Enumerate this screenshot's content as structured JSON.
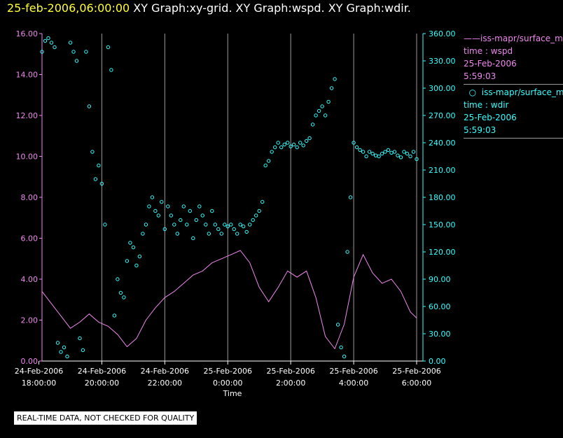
{
  "header": {
    "timestamp": "25-feb-2006,06:00:00",
    "title": "XY Graph:xy-grid.  XY Graph:wspd.  XY Graph:wdir."
  },
  "legend": {
    "wspd": {
      "series": "iss-mapr/surface_m",
      "field": "time : wspd",
      "date": "25-Feb-2006",
      "time": "5:59:03"
    },
    "wdir": {
      "series": "iss-mapr/surface_m",
      "field": "time : wdir",
      "date": "25-Feb-2006",
      "time": "5:59:03"
    }
  },
  "disclaimer": "REAL-TIME DATA, NOT CHECKED FOR QUALITY",
  "colors": {
    "wspd": "#ee88ee",
    "wdir": "#33ffff",
    "grid": "#9a9a9a",
    "header_date": "#ffff33",
    "background": "#000000"
  },
  "chart_data": {
    "type": "line",
    "xlabel": "Time",
    "xlim_hours": [
      -5.9,
      6.2
    ],
    "x_ticks": [
      {
        "hour": -6,
        "date": "24-Feb-2006",
        "time": "18:00:00"
      },
      {
        "hour": -4,
        "date": "24-Feb-2006",
        "time": "20:00:00"
      },
      {
        "hour": -2,
        "date": "24-Feb-2006",
        "time": "22:00:00"
      },
      {
        "hour": 0,
        "date": "25-Feb-2006",
        "time": "0:00:00"
      },
      {
        "hour": 2,
        "date": "25-Feb-2006",
        "time": "2:00:00"
      },
      {
        "hour": 4,
        "date": "25-Feb-2006",
        "time": "4:00:00"
      },
      {
        "hour": 6,
        "date": "25-Feb-2006",
        "time": "6:00:00"
      }
    ],
    "left_axis": {
      "ylim": [
        0,
        16
      ],
      "ticks": [
        "0.00",
        "2.00",
        "4.00",
        "6.00",
        "8.00",
        "10.00",
        "12.00",
        "14.00",
        "16.00"
      ]
    },
    "right_axis": {
      "ylim": [
        0,
        360
      ],
      "ticks": [
        "0.00",
        "30.00",
        "60.00",
        "90.00",
        "120.00",
        "150.00",
        "180.00",
        "210.00",
        "240.00",
        "270.00",
        "300.00",
        "330.00",
        "360.00"
      ]
    },
    "grid": "vertical",
    "series": [
      {
        "key": "wspd",
        "style": "line",
        "axis": "left",
        "x": [
          -5.9,
          -5.6,
          -5.3,
          -5.0,
          -4.7,
          -4.4,
          -4.1,
          -3.8,
          -3.5,
          -3.2,
          -2.9,
          -2.6,
          -2.3,
          -2.0,
          -1.7,
          -1.4,
          -1.1,
          -0.8,
          -0.5,
          -0.2,
          0.1,
          0.4,
          0.7,
          1.0,
          1.3,
          1.6,
          1.9,
          2.2,
          2.5,
          2.8,
          3.1,
          3.4,
          3.7,
          4.0,
          4.3,
          4.6,
          4.9,
          5.2,
          5.5,
          5.8,
          6.0
        ],
        "y": [
          3.4,
          2.8,
          2.2,
          1.6,
          1.9,
          2.3,
          1.9,
          1.7,
          1.3,
          0.7,
          1.1,
          2.0,
          2.6,
          3.1,
          3.4,
          3.8,
          4.2,
          4.4,
          4.8,
          5.0,
          5.2,
          5.4,
          4.8,
          3.6,
          2.9,
          3.6,
          4.4,
          4.1,
          4.4,
          3.1,
          1.2,
          0.6,
          1.8,
          4.1,
          5.2,
          4.3,
          3.8,
          4.0,
          3.4,
          2.4,
          2.1
        ]
      },
      {
        "key": "wdir",
        "style": "scatter",
        "axis": "right",
        "x": [
          -5.9,
          -5.8,
          -5.7,
          -5.6,
          -5.5,
          -5.4,
          -5.3,
          -5.2,
          -5.1,
          -5.0,
          -4.9,
          -4.8,
          -4.7,
          -4.6,
          -4.5,
          -4.4,
          -4.3,
          -4.2,
          -4.1,
          -4.0,
          -3.9,
          -3.8,
          -3.7,
          -3.6,
          -3.5,
          -3.4,
          -3.3,
          -3.2,
          -3.1,
          -3.0,
          -2.9,
          -2.8,
          -2.7,
          -2.6,
          -2.5,
          -2.4,
          -2.3,
          -2.2,
          -2.1,
          -2.0,
          -1.9,
          -1.8,
          -1.7,
          -1.6,
          -1.5,
          -1.4,
          -1.3,
          -1.2,
          -1.1,
          -1.0,
          -0.9,
          -0.8,
          -0.7,
          -0.6,
          -0.5,
          -0.4,
          -0.3,
          -0.2,
          -0.1,
          0.0,
          0.1,
          0.2,
          0.3,
          0.4,
          0.5,
          0.6,
          0.7,
          0.8,
          0.9,
          1.0,
          1.1,
          1.2,
          1.3,
          1.4,
          1.5,
          1.6,
          1.7,
          1.8,
          1.9,
          2.0,
          2.1,
          2.2,
          2.3,
          2.4,
          2.5,
          2.6,
          2.7,
          2.8,
          2.9,
          3.0,
          3.1,
          3.2,
          3.3,
          3.4,
          3.5,
          3.6,
          3.7,
          3.8,
          3.9,
          4.0,
          4.1,
          4.2,
          4.3,
          4.4,
          4.5,
          4.6,
          4.7,
          4.8,
          4.9,
          5.0,
          5.1,
          5.2,
          5.3,
          5.4,
          5.5,
          5.6,
          5.7,
          5.8,
          5.9,
          6.0
        ],
        "y": [
          340,
          352,
          355,
          350,
          345,
          20,
          10,
          15,
          5,
          350,
          340,
          330,
          25,
          12,
          340,
          280,
          230,
          200,
          215,
          195,
          150,
          345,
          320,
          50,
          90,
          75,
          70,
          110,
          130,
          125,
          105,
          115,
          140,
          150,
          170,
          180,
          165,
          160,
          175,
          145,
          170,
          160,
          150,
          140,
          155,
          170,
          150,
          165,
          135,
          155,
          170,
          160,
          150,
          140,
          165,
          150,
          145,
          140,
          150,
          148,
          150,
          145,
          140,
          150,
          148,
          142,
          150,
          155,
          160,
          165,
          175,
          215,
          220,
          230,
          235,
          240,
          235,
          238,
          240,
          236,
          238,
          235,
          240,
          237,
          242,
          245,
          260,
          270,
          275,
          280,
          270,
          285,
          300,
          310,
          40,
          15,
          5,
          120,
          180,
          240,
          235,
          232,
          230,
          225,
          230,
          228,
          226,
          225,
          228,
          230,
          232,
          229,
          230,
          226,
          224,
          230,
          228,
          225,
          230,
          222
        ]
      }
    ]
  }
}
